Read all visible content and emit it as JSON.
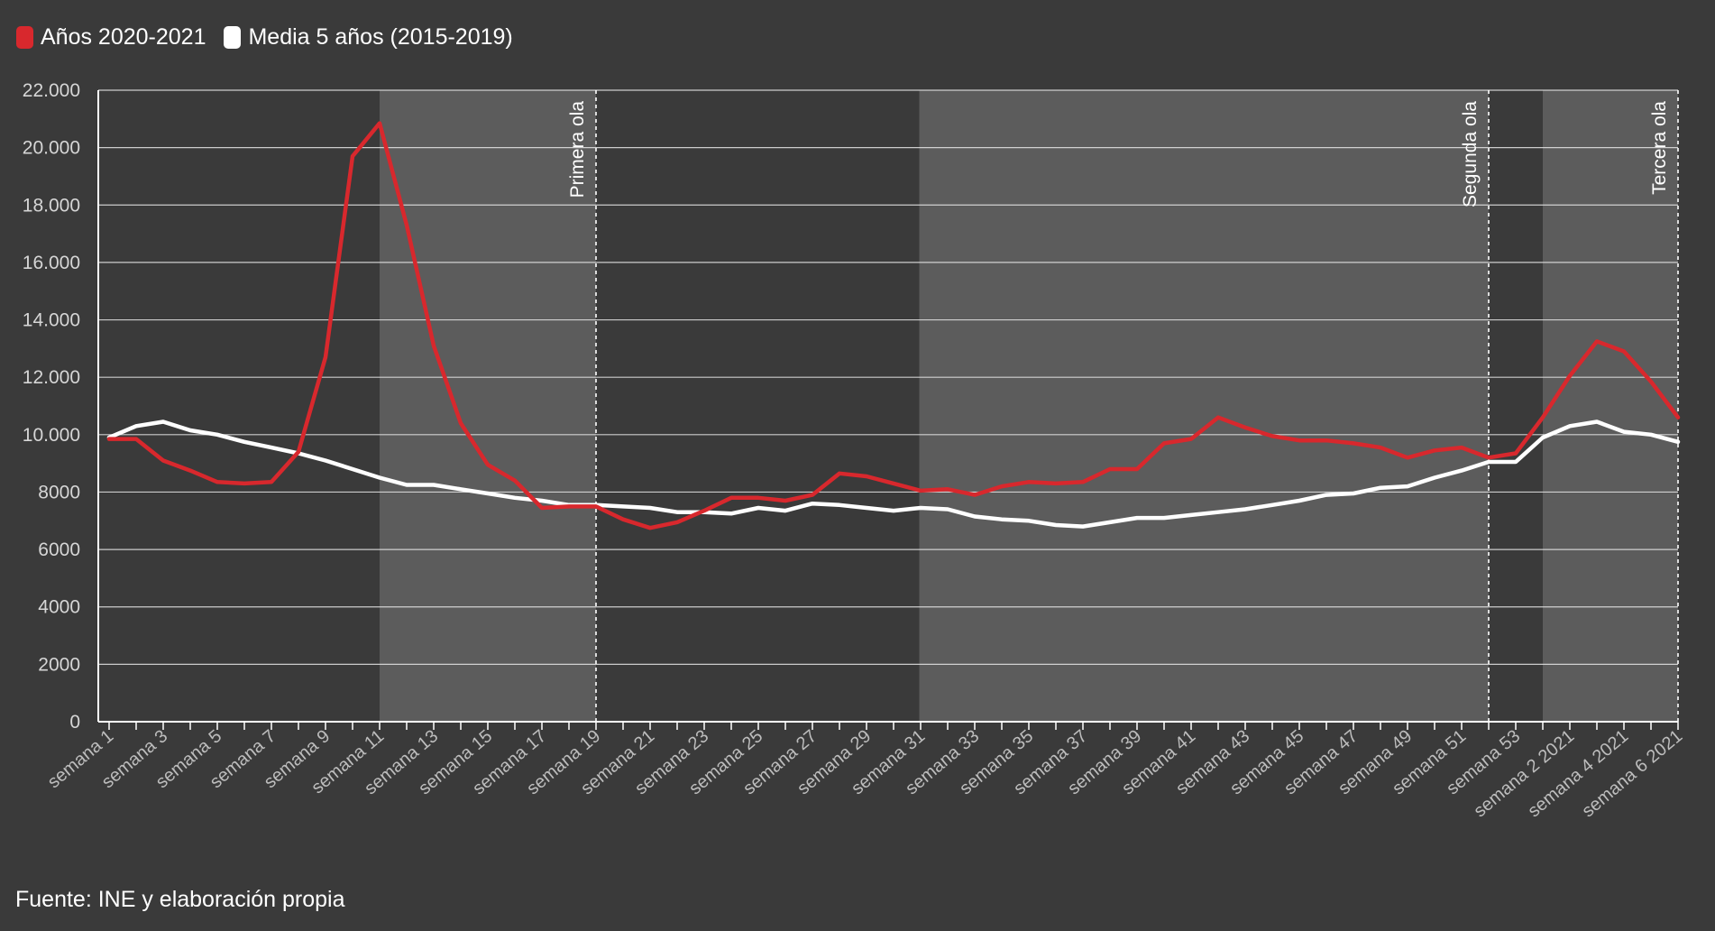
{
  "legend": {
    "items": [
      {
        "label": "Años 2020-2021",
        "color": "#d8282d"
      },
      {
        "label": "Media 5 años (2015-2019)",
        "color": "#ffffff"
      }
    ]
  },
  "source": "Fuente: INE y elaboración propia",
  "chart_data": {
    "type": "line",
    "title": "",
    "xlabel": "",
    "ylabel": "",
    "ylim": [
      0,
      22000
    ],
    "yticks": [
      0,
      2000,
      4000,
      6000,
      8000,
      10000,
      12000,
      14000,
      16000,
      18000,
      20000,
      22000
    ],
    "ytick_labels": [
      "0",
      "2000",
      "4000",
      "6000",
      "8000",
      "10.000",
      "12.000",
      "14.000",
      "16.000",
      "18.000",
      "20.000",
      "22.000"
    ],
    "grid": true,
    "legend_position": "top-left",
    "categories": [
      "semana 1",
      "semana 2",
      "semana 3",
      "semana 4",
      "semana 5",
      "semana 6",
      "semana 7",
      "semana 8",
      "semana 9",
      "semana 10",
      "semana 11",
      "semana 12",
      "semana 13",
      "semana 14",
      "semana 15",
      "semana 16",
      "semana 17",
      "semana 18",
      "semana 19",
      "semana 20",
      "semana 21",
      "semana 22",
      "semana 23",
      "semana 24",
      "semana 25",
      "semana 26",
      "semana 27",
      "semana 28",
      "semana 29",
      "semana 30",
      "semana 31",
      "semana 32",
      "semana 33",
      "semana 34",
      "semana 35",
      "semana 36",
      "semana 37",
      "semana 38",
      "semana 39",
      "semana 40",
      "semana 41",
      "semana 42",
      "semana 43",
      "semana 44",
      "semana 45",
      "semana 46",
      "semana 47",
      "semana 48",
      "semana 49",
      "semana 50",
      "semana 51",
      "semana 52",
      "semana 53",
      "semana 1 2021",
      "semana 2 2021",
      "semana 3 2021",
      "semana 4 2021",
      "semana 5 2021",
      "semana 6 2021"
    ],
    "visible_tick_labels": [
      "semana 1",
      "semana 3",
      "semana 5",
      "semana 7",
      "semana 9",
      "semana 11",
      "semana 13",
      "semana 15",
      "semana 17",
      "semana 19",
      "semana 21",
      "semana 23",
      "semana 25",
      "semana 27",
      "semana 29",
      "semana 31",
      "semana 33",
      "semana 35",
      "semana 37",
      "semana 39",
      "semana 41",
      "semana 43",
      "semana 45",
      "semana 47",
      "semana 49",
      "semana 51",
      "semana 53",
      "semana 2 2021",
      "semana 4 2021",
      "semana 6 2021"
    ],
    "series": [
      {
        "name": "Años 2020-2021",
        "color": "#d8282d",
        "values": [
          9850,
          9850,
          9100,
          8750,
          8350,
          8300,
          8350,
          9400,
          12700,
          19700,
          20850,
          17300,
          13100,
          10400,
          8950,
          8400,
          7450,
          7500,
          7500,
          7050,
          6750,
          6950,
          7350,
          7800,
          7800,
          7700,
          7900,
          8650,
          8550,
          8300,
          8050,
          8100,
          7900,
          8200,
          8350,
          8300,
          8350,
          8800,
          8800,
          9700,
          9850,
          10600,
          10250,
          9950,
          9800,
          9800,
          9700,
          9550,
          9200,
          9450,
          9550,
          9200,
          9350,
          10600,
          12050,
          13250,
          12900,
          11850,
          10600
        ]
      },
      {
        "name": "Media 5 años (2015-2019)",
        "color": "#ffffff",
        "values": [
          9900,
          10300,
          10450,
          10150,
          10000,
          9750,
          9550,
          9350,
          9100,
          8800,
          8500,
          8250,
          8250,
          8100,
          7950,
          7800,
          7700,
          7550,
          7550,
          7500,
          7450,
          7300,
          7300,
          7250,
          7450,
          7350,
          7600,
          7550,
          7450,
          7350,
          7450,
          7400,
          7150,
          7050,
          7000,
          6850,
          6800,
          6950,
          7100,
          7100,
          7200,
          7300,
          7400,
          7550,
          7700,
          7900,
          7950,
          8150,
          8200,
          8500,
          8750,
          9050,
          9050,
          9900,
          10300,
          10450,
          10100,
          10000,
          9750
        ]
      }
    ],
    "bands": [
      {
        "from": "semana 11",
        "to": "semana 19"
      },
      {
        "from": "semana 30",
        "to": "semana 52"
      },
      {
        "from": "semana 1 2021",
        "to": "semana 6 2021"
      }
    ],
    "annotations": [
      {
        "label": "Primera ola",
        "at": "semana 19"
      },
      {
        "label": "Segunda ola",
        "at": "semana 52"
      },
      {
        "label": "Tercera ola",
        "at": "semana 6 2021"
      }
    ]
  }
}
